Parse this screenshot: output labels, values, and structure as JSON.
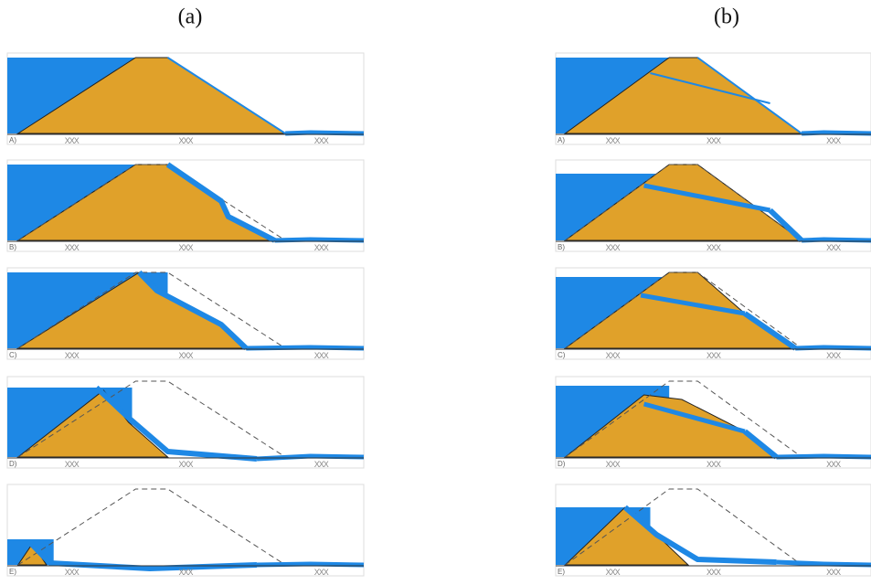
{
  "columns": [
    {
      "label": "(a)",
      "panels": [
        {
          "label": "A)",
          "marks": [
            "XXX",
            "XXX",
            "XXX"
          ]
        },
        {
          "label": "B)",
          "marks": [
            "XXX",
            "XXX",
            "XXX"
          ]
        },
        {
          "label": "C)",
          "marks": [
            "XXX",
            "XXX",
            "XXX"
          ]
        },
        {
          "label": "D)",
          "marks": [
            "XXX",
            "XXX",
            "XXX"
          ]
        },
        {
          "label": "E)",
          "marks": [
            "XXX",
            "XXX",
            "XXX"
          ]
        }
      ]
    },
    {
      "label": "(b)",
      "panels": [
        {
          "label": "A)",
          "marks": [
            "XXX",
            "XXX",
            "XXX"
          ]
        },
        {
          "label": "B)",
          "marks": [
            "XXX",
            "XXX",
            "XXX"
          ]
        },
        {
          "label": "C)",
          "marks": [
            "XXX",
            "XXX",
            "XXX"
          ]
        },
        {
          "label": "D)",
          "marks": [
            "XXX",
            "XXX",
            "XXX"
          ]
        },
        {
          "label": "E)",
          "marks": [
            "XXX",
            "XXX",
            "XXX"
          ]
        }
      ]
    }
  ]
}
